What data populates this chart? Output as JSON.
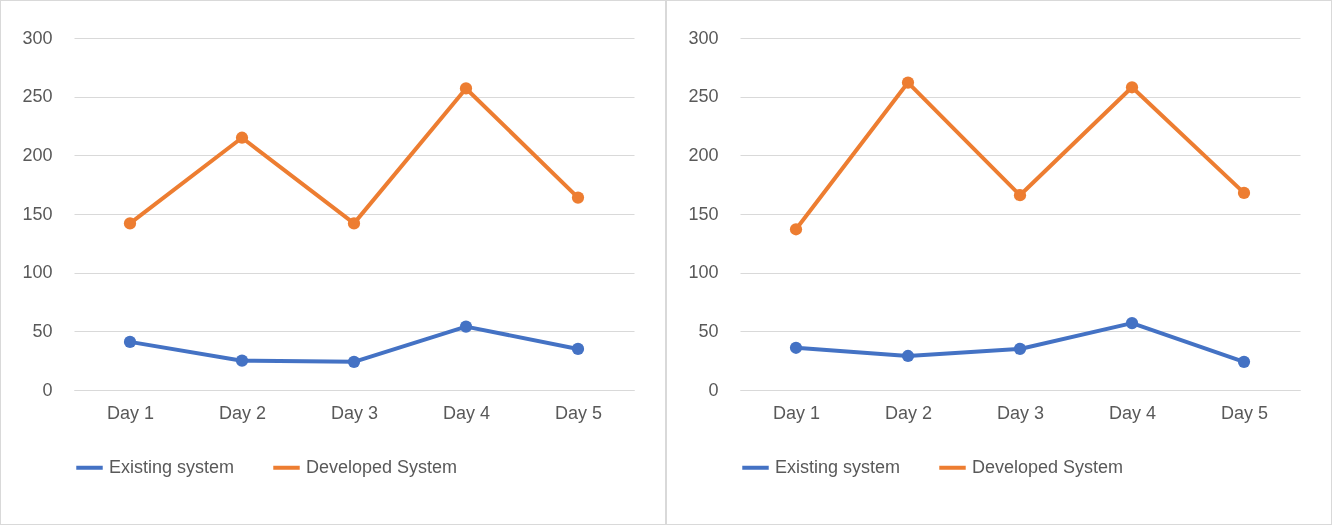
{
  "chart_data": [
    {
      "type": "line",
      "categories": [
        "Day 1",
        "Day 2",
        "Day 3",
        "Day 4",
        "Day 5"
      ],
      "ylim": [
        0,
        300
      ],
      "yticks": [
        0,
        50,
        100,
        150,
        200,
        250,
        300
      ],
      "grid": "y",
      "legend": "bottom",
      "marker": "circle",
      "line_style": "solid",
      "series": [
        {
          "name": "Existing system",
          "color": "#4472c4",
          "values": [
            41,
            25,
            24,
            54,
            35
          ]
        },
        {
          "name": "Developed System",
          "color": "#ed7d31",
          "values": [
            142,
            215,
            142,
            257,
            164
          ]
        }
      ]
    },
    {
      "type": "line",
      "categories": [
        "Day 1",
        "Day 2",
        "Day 3",
        "Day 4",
        "Day 5"
      ],
      "ylim": [
        0,
        300
      ],
      "yticks": [
        0,
        50,
        100,
        150,
        200,
        250,
        300
      ],
      "grid": "y",
      "legend": "bottom",
      "marker": "circle",
      "line_style": "solid",
      "series": [
        {
          "name": "Existing system",
          "color": "#4472c4",
          "values": [
            36,
            29,
            35,
            57,
            24
          ]
        },
        {
          "name": "Developed System",
          "color": "#ed7d31",
          "values": [
            137,
            262,
            166,
            258,
            168
          ]
        }
      ]
    }
  ]
}
